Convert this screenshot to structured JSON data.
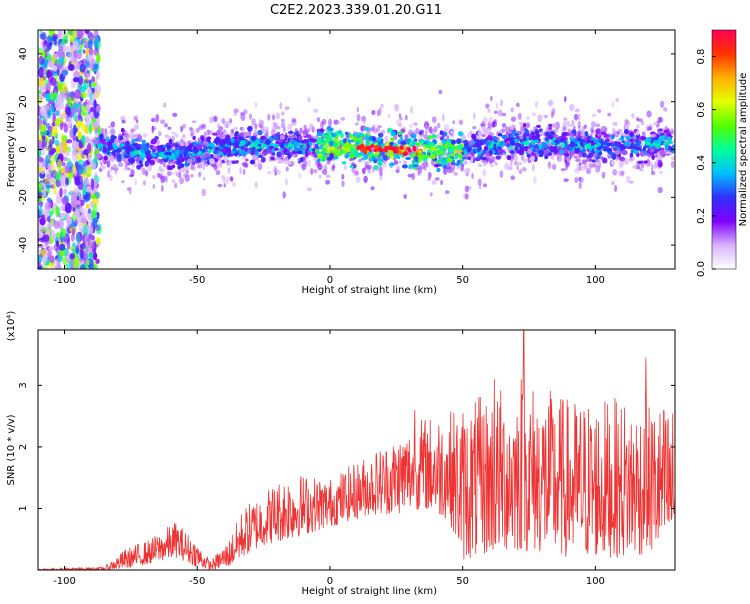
{
  "title": "C2E2.2023.339.01.20.G11",
  "chart_data": [
    {
      "type": "heatmap",
      "xlabel": "Height of straight line (km)",
      "ylabel": "Frequency (Hz)",
      "xlim": [
        -110,
        130
      ],
      "ylim": [
        -50,
        50
      ],
      "xticks": [
        -100,
        -50,
        0,
        50,
        100
      ],
      "yticks": [
        -40,
        -20,
        0,
        20,
        40
      ],
      "colorbar": {
        "label": "Normalized spectral amplitude",
        "range": [
          0.0,
          0.9
        ],
        "ticks": [
          0.0,
          0.2,
          0.4,
          0.6,
          0.8
        ],
        "colormap": [
          "#ffffff",
          "#d9b3ff",
          "#7f00ff",
          "#3030ff",
          "#00c0ff",
          "#00ff99",
          "#55ff00",
          "#e6ff00",
          "#ffb000",
          "#ff3300",
          "#ff0055"
        ]
      },
      "description_points": {
        "noise_band_x": [
          -110,
          -87
        ],
        "band_center_hz": [
          {
            "x": -87,
            "y": 1
          },
          {
            "x": -60,
            "y": -2
          },
          {
            "x": -30,
            "y": 2
          },
          {
            "x": 0,
            "y": 1
          },
          {
            "x": 20,
            "y": 0
          },
          {
            "x": 45,
            "y": -1
          },
          {
            "x": 70,
            "y": 3
          },
          {
            "x": 100,
            "y": 1
          },
          {
            "x": 130,
            "y": 3
          }
        ],
        "peak_amplitude_x": [
          10,
          35
        ]
      }
    },
    {
      "type": "line",
      "xlabel": "Height of straight line (km)",
      "ylabel": "SNR (10 * v/v)",
      "scale_label": "(x10⁴)",
      "xlim": [
        -110,
        130
      ],
      "ylim": [
        0,
        3.9
      ],
      "xticks": [
        -100,
        -50,
        0,
        50,
        100
      ],
      "yticks": [
        1,
        2,
        3
      ],
      "color": "#ee3333",
      "envelope": [
        {
          "x": -110,
          "lo": 0.0,
          "hi": 0.02
        },
        {
          "x": -85,
          "lo": 0.0,
          "hi": 0.05
        },
        {
          "x": -77,
          "lo": 0.02,
          "hi": 0.35
        },
        {
          "x": -68,
          "lo": 0.1,
          "hi": 0.5
        },
        {
          "x": -58,
          "lo": 0.2,
          "hi": 0.8
        },
        {
          "x": -50,
          "lo": 0.05,
          "hi": 0.45
        },
        {
          "x": -45,
          "lo": 0.0,
          "hi": 0.15
        },
        {
          "x": -38,
          "lo": 0.05,
          "hi": 0.5
        },
        {
          "x": -33,
          "lo": 0.2,
          "hi": 1.0
        },
        {
          "x": -25,
          "lo": 0.4,
          "hi": 1.3
        },
        {
          "x": -15,
          "lo": 0.5,
          "hi": 1.6
        },
        {
          "x": 0,
          "lo": 0.7,
          "hi": 1.5
        },
        {
          "x": 15,
          "lo": 0.9,
          "hi": 1.9
        },
        {
          "x": 25,
          "lo": 0.9,
          "hi": 2.2
        },
        {
          "x": 35,
          "lo": 1.0,
          "hi": 2.5
        },
        {
          "x": 45,
          "lo": 0.8,
          "hi": 2.6
        },
        {
          "x": 50,
          "lo": 0.15,
          "hi": 2.7
        },
        {
          "x": 65,
          "lo": 0.3,
          "hi": 3.0
        },
        {
          "x": 75,
          "lo": 0.3,
          "hi": 3.1
        },
        {
          "x": 90,
          "lo": 0.2,
          "hi": 2.8
        },
        {
          "x": 110,
          "lo": 0.2,
          "hi": 2.8
        },
        {
          "x": 130,
          "lo": 0.3,
          "hi": 2.7
        }
      ],
      "notable_peaks": [
        {
          "x": 73,
          "y": 3.9
        },
        {
          "x": 72,
          "y": 3.1
        },
        {
          "x": 62,
          "y": 3.1
        },
        {
          "x": 119,
          "y": 3.45
        },
        {
          "x": 32,
          "y": 2.6
        }
      ]
    }
  ]
}
